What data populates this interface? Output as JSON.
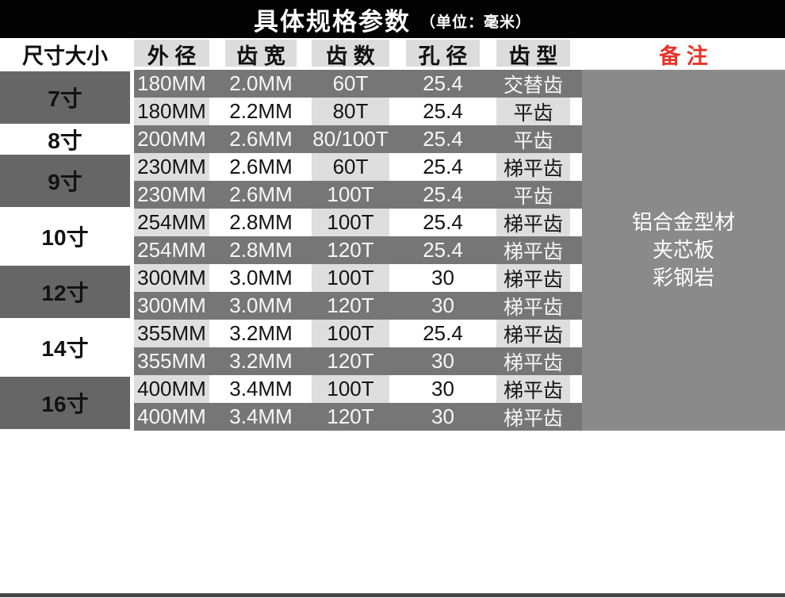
{
  "title": {
    "main": "具体规格参数",
    "unit": "（单位：毫米）"
  },
  "columns": [
    "尺寸大小",
    "外 径",
    "齿 宽",
    "齿 数",
    "孔 径",
    "齿 型",
    "备 注"
  ],
  "groups": [
    {
      "size": "7寸",
      "shade": "dark",
      "span": 2
    },
    {
      "size": "8寸",
      "shade": "light",
      "span": 1
    },
    {
      "size": "9寸",
      "shade": "dark",
      "span": 2
    },
    {
      "size": "10寸",
      "shade": "light",
      "span": 2
    },
    {
      "size": "12寸",
      "shade": "dark",
      "span": 2
    },
    {
      "size": "14寸",
      "shade": "light",
      "span": 2
    },
    {
      "size": "16寸",
      "shade": "dark",
      "span": 2
    }
  ],
  "rows": [
    {
      "tone": "dark",
      "outer": "180MM",
      "width": "2.0MM",
      "teeth": "60T",
      "bore": "25.4",
      "type": "交替齿"
    },
    {
      "tone": "light",
      "outer": "180MM",
      "width": "2.2MM",
      "teeth": "80T",
      "bore": "25.4",
      "type": "平齿"
    },
    {
      "tone": "dark",
      "outer": "200MM",
      "width": "2.6MM",
      "teeth": "80/100T",
      "bore": "25.4",
      "type": "平齿"
    },
    {
      "tone": "light",
      "outer": "230MM",
      "width": "2.6MM",
      "teeth": "60T",
      "bore": "25.4",
      "type": "梯平齿"
    },
    {
      "tone": "dark",
      "outer": "230MM",
      "width": "2.6MM",
      "teeth": "100T",
      "bore": "25.4",
      "type": "平齿"
    },
    {
      "tone": "light",
      "outer": "254MM",
      "width": "2.8MM",
      "teeth": "100T",
      "bore": "25.4",
      "type": "梯平齿"
    },
    {
      "tone": "dark",
      "outer": "254MM",
      "width": "2.8MM",
      "teeth": "120T",
      "bore": "25.4",
      "type": "梯平齿"
    },
    {
      "tone": "light",
      "outer": "300MM",
      "width": "3.0MM",
      "teeth": "100T",
      "bore": "30",
      "type": "梯平齿"
    },
    {
      "tone": "dark",
      "outer": "300MM",
      "width": "3.0MM",
      "teeth": "120T",
      "bore": "30",
      "type": "梯平齿"
    },
    {
      "tone": "light",
      "outer": "355MM",
      "width": "3.2MM",
      "teeth": "100T",
      "bore": "25.4",
      "type": "梯平齿"
    },
    {
      "tone": "dark",
      "outer": "355MM",
      "width": "3.2MM",
      "teeth": "120T",
      "bore": "30",
      "type": "梯平齿"
    },
    {
      "tone": "light",
      "outer": "400MM",
      "width": "3.4MM",
      "teeth": "100T",
      "bore": "30",
      "type": "梯平齿"
    },
    {
      "tone": "dark",
      "outer": "400MM",
      "width": "3.4MM",
      "teeth": "120T",
      "bore": "30",
      "type": "梯平齿"
    }
  ],
  "remark_lines": [
    "铝合金型材",
    "夹芯板",
    "彩钢岩"
  ],
  "colors": {
    "title_bar": "#030303",
    "remark_red": "#e63329",
    "header_cell": "#dcdcdc",
    "dark_row": "#767676",
    "light_cell": "#dedede",
    "size_block_dark": "#666666",
    "remark_block": "#8a8a8a",
    "bottom_line": "#474747"
  },
  "chart_data": {
    "type": "table",
    "title": "具体规格参数",
    "unit_note": "单位：毫米",
    "columns": [
      "尺寸大小",
      "外径",
      "齿宽",
      "齿数",
      "孔径",
      "齿型"
    ],
    "rows": [
      [
        "7寸",
        "180MM",
        "2.0MM",
        "60T",
        "25.4",
        "交替齿"
      ],
      [
        "7寸",
        "180MM",
        "2.2MM",
        "80T",
        "25.4",
        "平齿"
      ],
      [
        "8寸",
        "200MM",
        "2.6MM",
        "80/100T",
        "25.4",
        "平齿"
      ],
      [
        "9寸",
        "230MM",
        "2.6MM",
        "60T",
        "25.4",
        "梯平齿"
      ],
      [
        "9寸",
        "230MM",
        "2.6MM",
        "100T",
        "25.4",
        "平齿"
      ],
      [
        "10寸",
        "254MM",
        "2.8MM",
        "100T",
        "25.4",
        "梯平齿"
      ],
      [
        "10寸",
        "254MM",
        "2.8MM",
        "120T",
        "25.4",
        "梯平齿"
      ],
      [
        "12寸",
        "300MM",
        "3.0MM",
        "100T",
        "30",
        "梯平齿"
      ],
      [
        "12寸",
        "300MM",
        "3.0MM",
        "120T",
        "30",
        "梯平齿"
      ],
      [
        "14寸",
        "355MM",
        "3.2MM",
        "100T",
        "25.4",
        "梯平齿"
      ],
      [
        "14寸",
        "355MM",
        "3.2MM",
        "120T",
        "30",
        "梯平齿"
      ],
      [
        "16寸",
        "400MM",
        "3.4MM",
        "100T",
        "30",
        "梯平齿"
      ],
      [
        "16寸",
        "400MM",
        "3.4MM",
        "120T",
        "30",
        "梯平齿"
      ]
    ],
    "merged_remark_column": {
      "header": "备注",
      "value": "铝合金型材 夹芯板 彩钢岩"
    }
  }
}
